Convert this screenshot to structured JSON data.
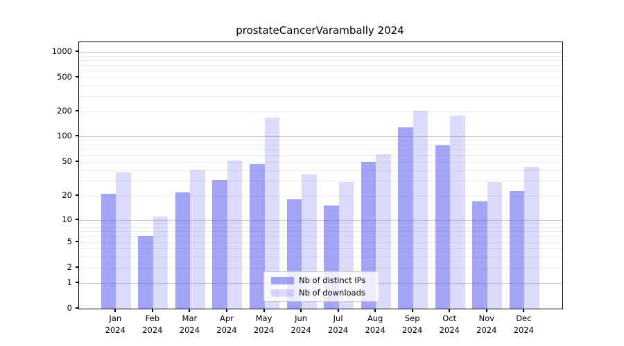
{
  "chart_data": {
    "type": "bar",
    "title": "prostateCancerVarambally 2024",
    "categories": [
      "Jan 2024",
      "Feb 2024",
      "Mar 2024",
      "Apr 2024",
      "May 2024",
      "Jun 2024",
      "Jul 2024",
      "Aug 2024",
      "Sep 2024",
      "Oct 2024",
      "Nov 2024",
      "Dec 2024"
    ],
    "series": [
      {
        "name": "Nb of distinct IPs",
        "color": "rgba(90,90,235,0.55)",
        "values": [
          21,
          6,
          22,
          31,
          47,
          18,
          15,
          50,
          128,
          78,
          17,
          23
        ]
      },
      {
        "name": "Nb of downloads",
        "color": "rgba(90,90,235,0.22)",
        "values": [
          38,
          11,
          40,
          52,
          168,
          36,
          29,
          61,
          205,
          178,
          29,
          44
        ]
      }
    ],
    "y_axis": {
      "scale": "log",
      "tick_values": [
        0,
        1,
        2,
        5,
        10,
        20,
        50,
        100,
        200,
        500,
        1000
      ],
      "tick_labels": [
        "0",
        "1",
        "2",
        "5",
        "10",
        "20",
        "50",
        "100",
        "200",
        "500",
        "1000"
      ],
      "range": [
        0,
        1000
      ]
    },
    "x_axis": {
      "label": "",
      "year": "2024"
    },
    "legend": {
      "position": "lower-center",
      "items": [
        "Nb of distinct IPs",
        "Nb of downloads"
      ]
    },
    "grid": "on"
  }
}
